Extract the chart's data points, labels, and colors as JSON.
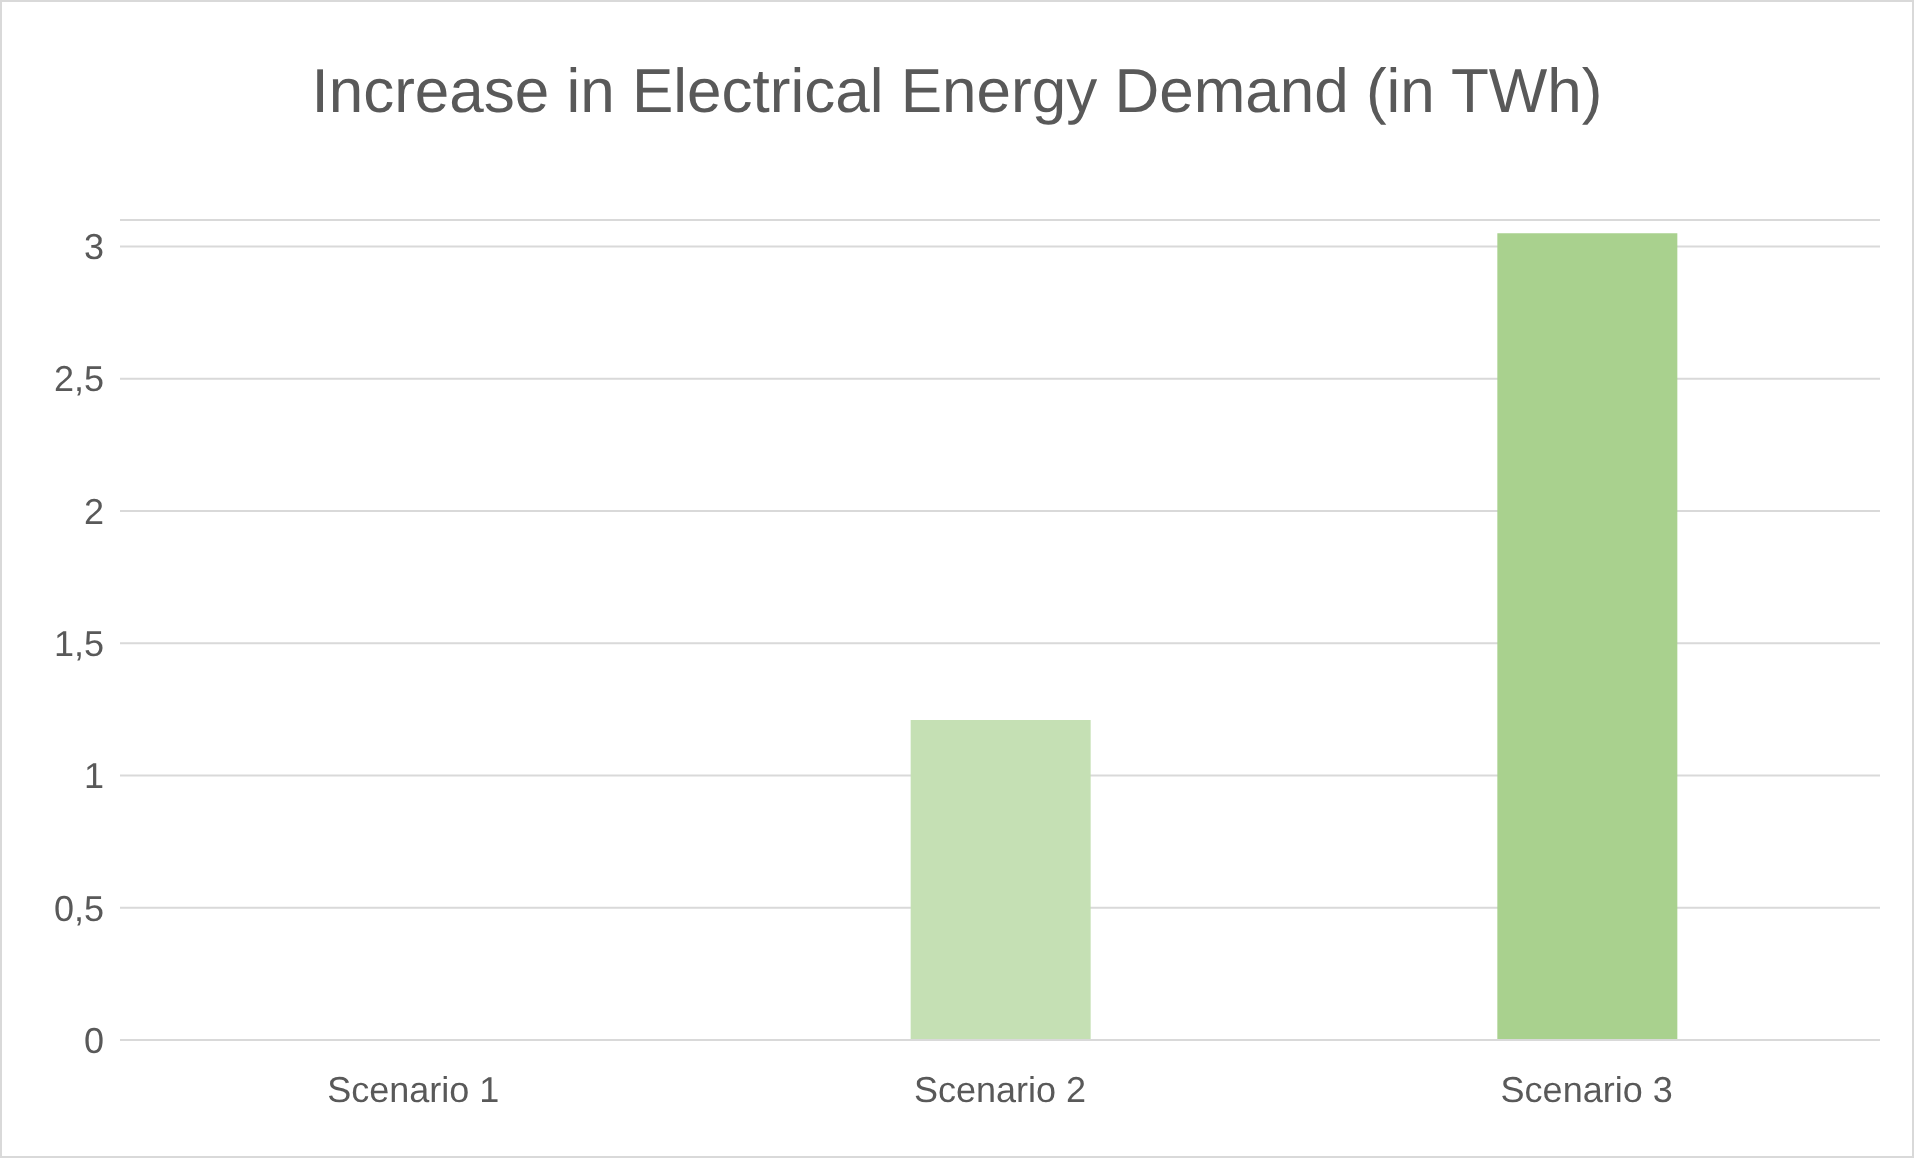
{
  "chart_data": {
    "type": "bar",
    "title": "Increase in Electrical Energy Demand (in TWh)",
    "categories": [
      "Scenario 1",
      "Scenario 2",
      "Scenario 3"
    ],
    "values": [
      0,
      1.21,
      3.05
    ],
    "colors": [
      "#c5e0b4",
      "#c5e0b4",
      "#a9d18e"
    ],
    "ylim": [
      0,
      3.1
    ],
    "yticks": [
      0,
      {
        "value": 0.5,
        "label": "0,5"
      },
      1,
      {
        "value": 1.5,
        "label": "1,5"
      },
      2,
      {
        "value": 2.5,
        "label": "2,5"
      },
      3
    ],
    "grid": "y"
  }
}
